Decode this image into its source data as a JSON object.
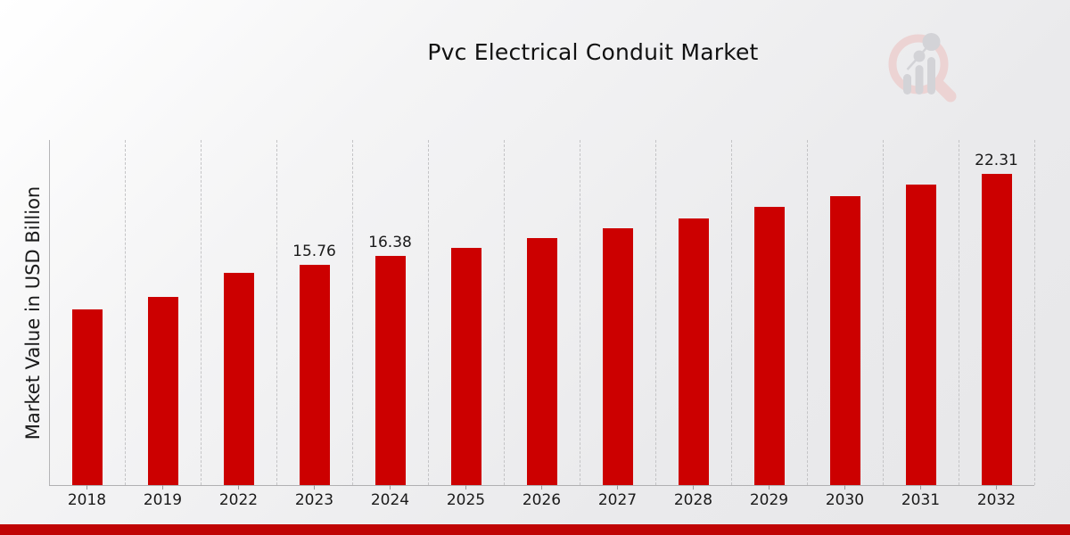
{
  "page": {
    "title": "Pvc Electrical Conduit Market",
    "ylabel": "Market Value in USD Billion",
    "watermark_icon": "magnifier-bar-chart-logo",
    "colors": {
      "bar": "#cc0000",
      "footer_strip": "#c00404",
      "gridline": "#c4c4c6",
      "logo_pink": "#ecd3d3",
      "logo_grey": "#d3d3d7"
    }
  },
  "chart_data": {
    "type": "bar",
    "title": "Pvc Electrical Conduit Market",
    "xlabel": "",
    "ylabel": "Market Value in USD Billion",
    "ylim": [
      0,
      24.9
    ],
    "grid": "vertical-dashed",
    "legend": "none",
    "bar_color": "#cc0000",
    "categories": [
      "2018",
      "2019",
      "2022",
      "2023",
      "2024",
      "2025",
      "2026",
      "2027",
      "2028",
      "2029",
      "2030",
      "2031",
      "2032"
    ],
    "values": [
      12.6,
      13.5,
      15.2,
      15.76,
      16.38,
      17.0,
      17.7,
      18.4,
      19.1,
      19.9,
      20.7,
      21.5,
      22.31
    ],
    "data_labels": [
      "",
      "",
      "",
      "15.76",
      "16.38",
      "",
      "",
      "",
      "",
      "",
      "",
      "",
      "22.31"
    ]
  }
}
